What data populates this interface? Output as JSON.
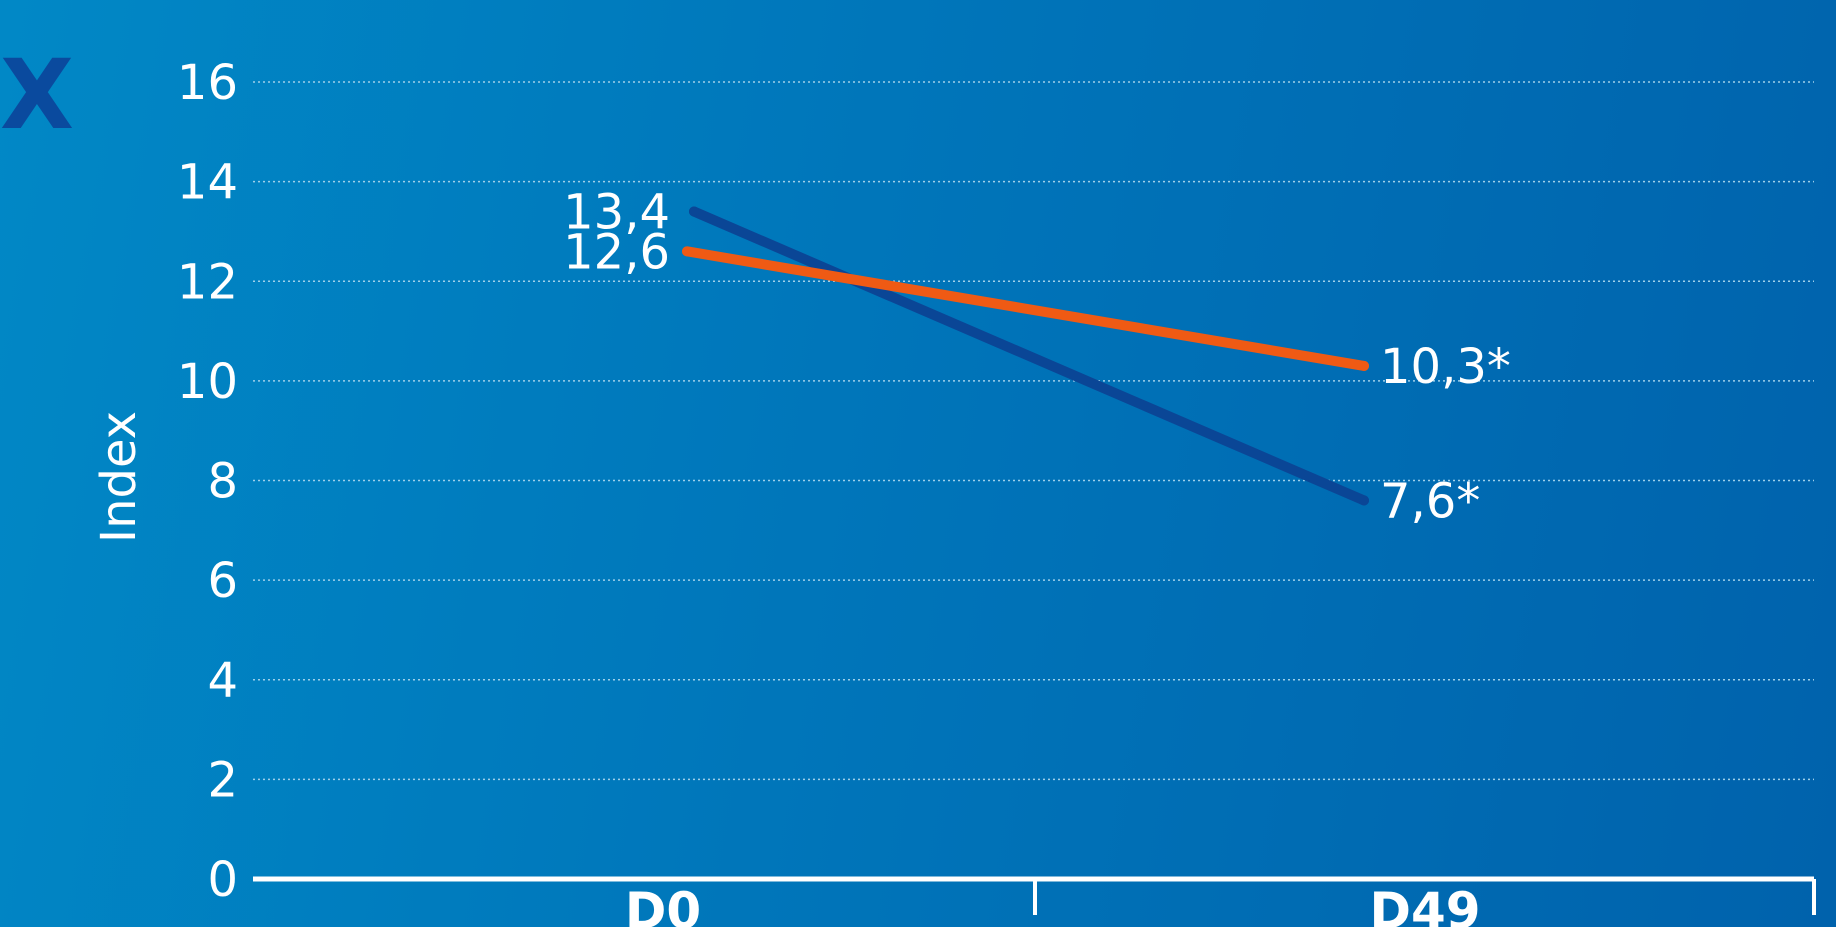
{
  "panel_label": "X",
  "colors": {
    "series_1": "#0a4696",
    "series_2": "#ef5a14",
    "grid": "#9fd0ea",
    "axis": "#ffffff",
    "text": "#ffffff"
  },
  "chart_data": {
    "type": "line",
    "title": "",
    "xlabel": "",
    "ylabel": "Index",
    "categories": [
      "D0",
      "D49"
    ],
    "ylim": [
      0,
      16
    ],
    "yticks": [
      0,
      2,
      4,
      6,
      8,
      10,
      12,
      14,
      16
    ],
    "grid": true,
    "legend": "none",
    "series": [
      {
        "values": [
          13.4,
          7.6
        ],
        "labels": [
          "13,4",
          "7,6*"
        ],
        "color": "#0a4696"
      },
      {
        "values": [
          12.6,
          10.3
        ],
        "labels": [
          "12,6",
          "10,3*"
        ],
        "color": "#ef5a14"
      }
    ]
  }
}
